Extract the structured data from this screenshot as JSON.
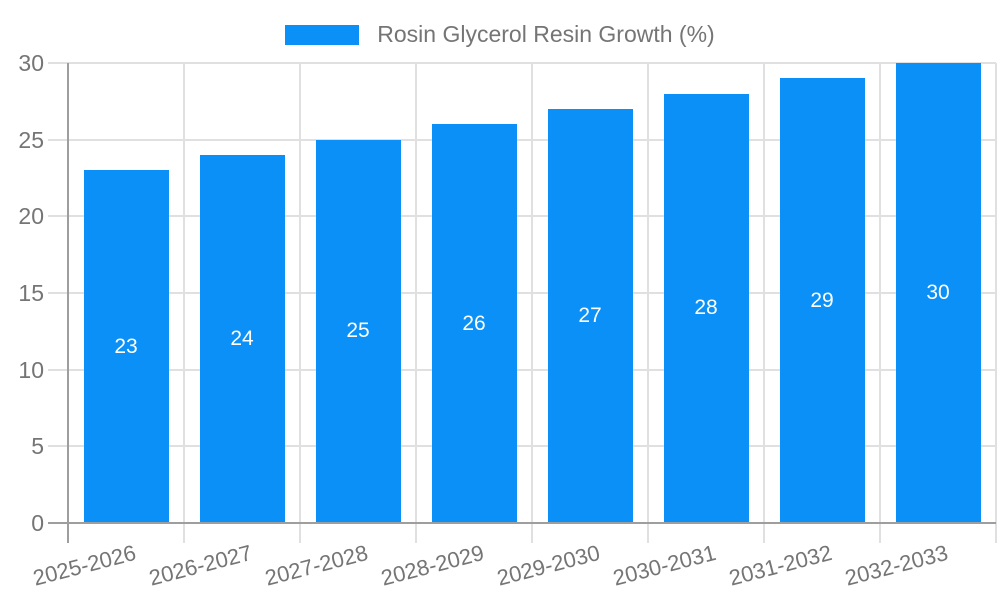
{
  "legend": {
    "label": "Rosin Glycerol Resin Growth (%)"
  },
  "chart_data": {
    "type": "bar",
    "title": "Rosin Glycerol Resin Growth (%)",
    "categories": [
      "2025-2026",
      "2026-2027",
      "2027-2028",
      "2028-2029",
      "2029-2030",
      "2030-2031",
      "2031-2032",
      "2032-2033"
    ],
    "values": [
      23,
      24,
      25,
      26,
      27,
      28,
      29,
      30
    ],
    "data_labels": [
      "23",
      "24",
      "25",
      "26",
      "27",
      "28",
      "29",
      "30"
    ],
    "xlabel": "",
    "ylabel": "",
    "ylim": [
      0,
      30
    ],
    "yticks": [
      0,
      5,
      10,
      15,
      20,
      25,
      30
    ],
    "grid": "horizontal and vertical",
    "legend_position": "top-center",
    "x_tick_rotation_deg": -14.5
  },
  "colors": {
    "bar": "#0a90f6",
    "bar_label": "#ffffff",
    "axis_line": "#9e9e9e",
    "gridline": "#e0e0e0",
    "tick_label": "#757575",
    "background": "#ffffff"
  }
}
